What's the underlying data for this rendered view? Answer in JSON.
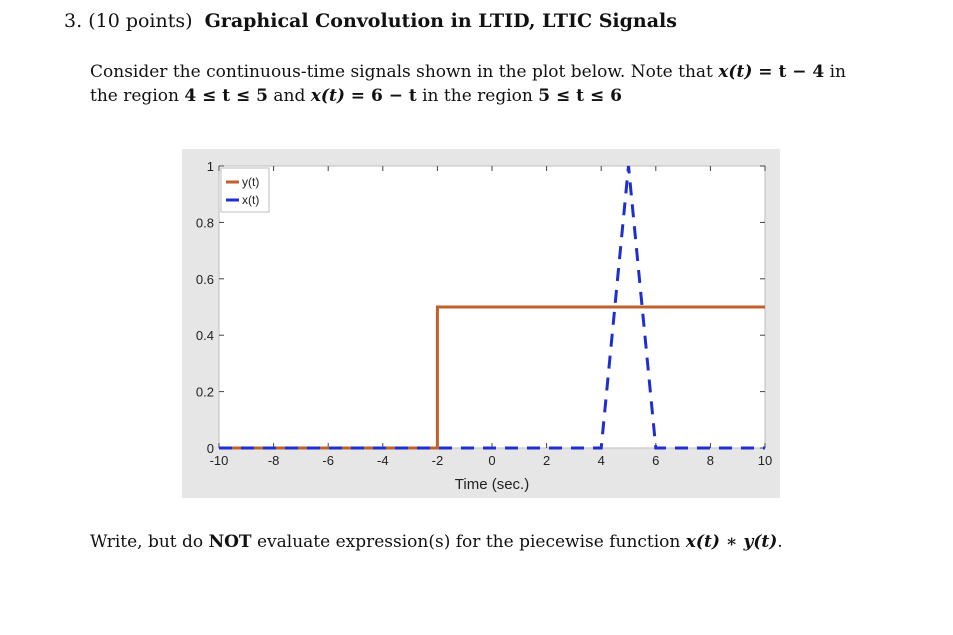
{
  "header": {
    "number": "3.",
    "points": "(10 points)",
    "title": "Graphical Convolution in LTID, LTIC Signals"
  },
  "intro": {
    "s1": "Consider the continuous-time signals shown in the plot below. Note that ",
    "x_t": "x(t)",
    "eq1": " = t − 4",
    "s2": " in",
    "s3": "the region ",
    "r1": "4 ≤ t ≤ 5",
    "s4": " and ",
    "x_t2": "x(t)",
    "eq2": " = 6 − t",
    "s5": " in the region ",
    "r2": "5 ≤ t ≤ 6"
  },
  "question": {
    "s1": "Write, but do ",
    "not": "NOT",
    "s2": " evaluate expression(s) for the piecewise function ",
    "expr": "x(t) ∗ y(t)",
    "s3": "."
  },
  "chart_data": {
    "type": "line",
    "xlabel": "Time (sec.)",
    "ylabel": "",
    "xlim": [
      -10,
      10
    ],
    "ylim": [
      0,
      1
    ],
    "xticks": [
      -10,
      -8,
      -6,
      -4,
      -2,
      0,
      2,
      4,
      6,
      8,
      10
    ],
    "yticks": [
      0,
      0.2,
      0.4,
      0.6,
      0.8,
      1
    ],
    "ytick_labels": [
      "0",
      "0.2",
      "0.4",
      "0.6",
      "0.8",
      "1"
    ],
    "grid": false,
    "legend": "top-left",
    "series": [
      {
        "name": "y(t)",
        "color": "#c0612b",
        "style": "solid",
        "x": [
          -10,
          -2,
          -2,
          10
        ],
        "y": [
          0,
          0,
          0.5,
          0.5
        ]
      },
      {
        "name": "x(t)",
        "color": "#1f2fcf",
        "style": "dashed",
        "x": [
          -10,
          4,
          5,
          6,
          10
        ],
        "y": [
          0,
          0,
          1,
          0,
          0
        ]
      }
    ]
  }
}
